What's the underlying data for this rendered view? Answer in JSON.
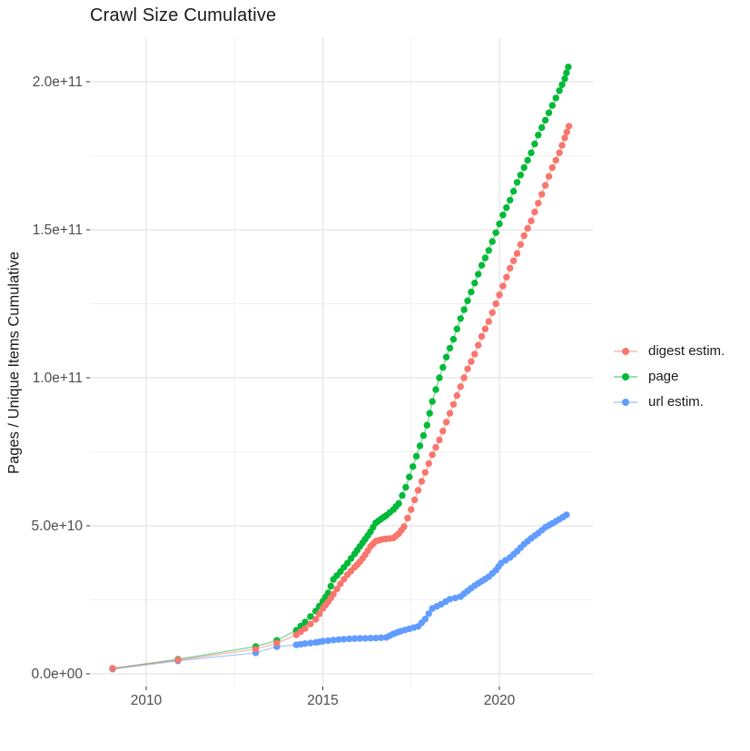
{
  "chart": {
    "title": "Crawl Size Cumulative",
    "ylabel": "Pages / Unique Items Cumulative"
  },
  "chart_data": {
    "type": "line",
    "title": "Crawl Size Cumulative",
    "xlabel": "",
    "ylabel": "Pages / Unique Items Cumulative",
    "legend_position": "right",
    "grid": "major and minor, light grey on white",
    "x_unit": "year",
    "y_values_unit": "1e9 (billions of pages / unique items)",
    "xlim": [
      2008.4,
      2022.65
    ],
    "ylim_billions": [
      0,
      215
    ],
    "x_ticks": {
      "major": [
        2010,
        2015,
        2020
      ],
      "labels": [
        "2010",
        "2015",
        "2020"
      ],
      "minor": [
        2012.5,
        2017.5
      ]
    },
    "y_ticks": {
      "major_billions": [
        0,
        50,
        100,
        150,
        200
      ],
      "labels": [
        "0.0e+00",
        "5.0e+10",
        "1.0e+11",
        "1.5e+11",
        "2.0e+11"
      ],
      "minor_billions": [
        25,
        75,
        125,
        175
      ]
    },
    "series": [
      {
        "name": "digest estim.",
        "color": "#F8766D",
        "points": [
          [
            2009.05,
            1.8
          ],
          [
            2010.9,
            4.7
          ],
          [
            2013.1,
            8.3
          ],
          [
            2013.7,
            10.4
          ],
          [
            2014.25,
            13.2
          ],
          [
            2014.5,
            15.3
          ],
          [
            2014.8,
            18.4
          ],
          [
            2015.0,
            22.1
          ],
          [
            2015.15,
            24.3
          ],
          [
            2015.3,
            26.9
          ],
          [
            2015.5,
            30.4
          ],
          [
            2015.7,
            33.5
          ],
          [
            2015.9,
            36.0
          ],
          [
            2016.05,
            37.8
          ],
          [
            2016.2,
            40.2
          ],
          [
            2016.35,
            43.0
          ],
          [
            2016.5,
            44.8
          ],
          [
            2016.65,
            45.3
          ],
          [
            2016.8,
            45.6
          ],
          [
            2017.0,
            45.9
          ],
          [
            2017.15,
            47.3
          ],
          [
            2017.3,
            49.7
          ],
          [
            2017.5,
            55.5
          ],
          [
            2017.7,
            62
          ],
          [
            2017.9,
            68
          ],
          [
            2018.1,
            74
          ],
          [
            2018.3,
            79
          ],
          [
            2018.5,
            85
          ],
          [
            2018.7,
            91
          ],
          [
            2018.9,
            97
          ],
          [
            2019.1,
            103
          ],
          [
            2019.3,
            108
          ],
          [
            2019.5,
            114
          ],
          [
            2019.7,
            119
          ],
          [
            2019.9,
            125
          ],
          [
            2020.1,
            131
          ],
          [
            2020.3,
            137
          ],
          [
            2020.5,
            142
          ],
          [
            2020.7,
            148
          ],
          [
            2020.9,
            153
          ],
          [
            2021.1,
            159
          ],
          [
            2021.3,
            165
          ],
          [
            2021.5,
            171
          ],
          [
            2021.7,
            176
          ],
          [
            2021.85,
            181
          ],
          [
            2021.97,
            185
          ]
        ]
      },
      {
        "name": "page",
        "color": "#00BA38",
        "points": [
          [
            2009.05,
            1.8
          ],
          [
            2010.9,
            4.9
          ],
          [
            2013.1,
            9.2
          ],
          [
            2013.7,
            11.3
          ],
          [
            2014.25,
            14.7
          ],
          [
            2014.5,
            17.5
          ],
          [
            2014.8,
            21.2
          ],
          [
            2015.0,
            24.5
          ],
          [
            2015.15,
            27.3
          ],
          [
            2015.3,
            31.9
          ],
          [
            2015.5,
            34.5
          ],
          [
            2015.7,
            37.4
          ],
          [
            2015.9,
            40.5
          ],
          [
            2016.05,
            43.0
          ],
          [
            2016.2,
            45.5
          ],
          [
            2016.35,
            48.0
          ],
          [
            2016.5,
            51.0
          ],
          [
            2016.65,
            52.3
          ],
          [
            2016.8,
            53.5
          ],
          [
            2017.0,
            55.5
          ],
          [
            2017.15,
            57.5
          ],
          [
            2017.35,
            63
          ],
          [
            2017.55,
            70
          ],
          [
            2017.75,
            77
          ],
          [
            2017.95,
            84
          ],
          [
            2018.1,
            92
          ],
          [
            2018.3,
            100
          ],
          [
            2018.5,
            107
          ],
          [
            2018.7,
            113
          ],
          [
            2018.9,
            120
          ],
          [
            2019.1,
            126
          ],
          [
            2019.3,
            132
          ],
          [
            2019.5,
            138
          ],
          [
            2019.7,
            143
          ],
          [
            2019.9,
            149
          ],
          [
            2020.1,
            155
          ],
          [
            2020.3,
            160
          ],
          [
            2020.5,
            166
          ],
          [
            2020.7,
            171
          ],
          [
            2020.9,
            176
          ],
          [
            2021.1,
            182
          ],
          [
            2021.3,
            187
          ],
          [
            2021.5,
            192
          ],
          [
            2021.7,
            197
          ],
          [
            2021.85,
            201
          ],
          [
            2021.95,
            205
          ]
        ]
      },
      {
        "name": "url estim.",
        "color": "#619CFF",
        "points": [
          [
            2009.05,
            1.6
          ],
          [
            2010.9,
            4.4
          ],
          [
            2013.1,
            7.1
          ],
          [
            2013.7,
            9.2
          ],
          [
            2014.25,
            9.8
          ],
          [
            2014.5,
            10.2
          ],
          [
            2014.8,
            10.6
          ],
          [
            2015.0,
            11.0
          ],
          [
            2015.3,
            11.4
          ],
          [
            2015.6,
            11.7
          ],
          [
            2015.9,
            11.9
          ],
          [
            2016.2,
            12.0
          ],
          [
            2016.5,
            12.1
          ],
          [
            2016.8,
            12.3
          ],
          [
            2017.0,
            13.5
          ],
          [
            2017.2,
            14.4
          ],
          [
            2017.45,
            15.2
          ],
          [
            2017.7,
            16.0
          ],
          [
            2017.9,
            18.5
          ],
          [
            2018.1,
            22.1
          ],
          [
            2018.35,
            23.5
          ],
          [
            2018.6,
            25.2
          ],
          [
            2018.9,
            26.1
          ],
          [
            2019.1,
            28.0
          ],
          [
            2019.3,
            29.8
          ],
          [
            2019.5,
            31.3
          ],
          [
            2019.7,
            32.8
          ],
          [
            2019.9,
            35.0
          ],
          [
            2020.05,
            37.4
          ],
          [
            2020.3,
            39.3
          ],
          [
            2020.5,
            41.4
          ],
          [
            2020.7,
            43.8
          ],
          [
            2020.9,
            45.8
          ],
          [
            2021.1,
            47.5
          ],
          [
            2021.3,
            49.5
          ],
          [
            2021.5,
            50.8
          ],
          [
            2021.7,
            52.2
          ],
          [
            2021.9,
            53.7
          ]
        ]
      }
    ]
  }
}
